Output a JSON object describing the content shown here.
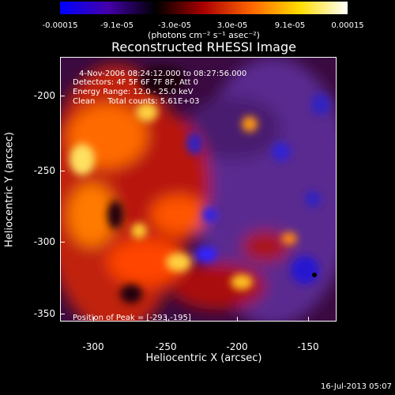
{
  "title": "Reconstructed RHESSI Image",
  "colorbar": {
    "ticks": [
      "-0.00015",
      "-9.1e-05",
      "-3.0e-05",
      "3.0e-05",
      "9.1e-05",
      "0.00015"
    ],
    "unit_label": "(photons cm⁻² s⁻¹ asec⁻²)",
    "colors": [
      "#0000ff",
      "#4400aa",
      "#000000",
      "#aa0000",
      "#ff6600",
      "#ffdd00",
      "#ffffff"
    ]
  },
  "annotations": {
    "time_range": "4-Nov-2006 08:24:12.000 to 08:27:56.000",
    "detectors": "Detectors: 4F 5F 6F 7F 8F, Att 0",
    "energy": "Energy Range: 12.0 - 25.0 keV",
    "method": "Clean     Total counts: 5.61E+03",
    "peak": "Position of Peak = [-293,-195]"
  },
  "axes": {
    "xlabel": "Heliocentric X (arcsec)",
    "ylabel": "Heliocentric Y (arcsec)",
    "xticks": [
      "-300",
      "-250",
      "-200",
      "-150"
    ],
    "yticks": [
      "-200",
      "-250",
      "-300",
      "-350"
    ],
    "xlim": [
      -322,
      -128
    ],
    "ylim": [
      -368,
      -177
    ]
  },
  "timestamp": "16-Jul-2013 05:07"
}
